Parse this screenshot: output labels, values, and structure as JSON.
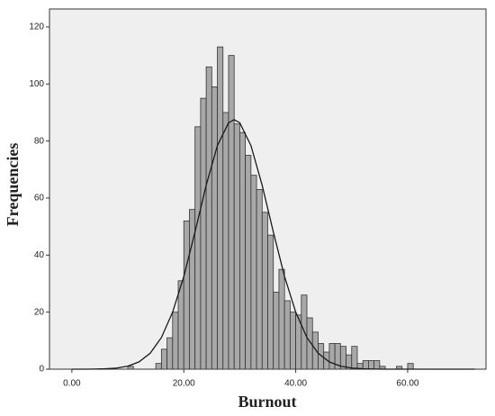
{
  "chart_data": {
    "type": "histogram",
    "xlabel": "Burnout",
    "ylabel": "Frequencies",
    "bins": [
      10,
      11,
      12,
      13,
      14,
      15,
      16,
      17,
      18,
      19,
      20,
      21,
      22,
      23,
      24,
      25,
      26,
      27,
      28,
      29,
      30,
      31,
      32,
      33,
      34,
      35,
      36,
      37,
      38,
      39,
      40,
      41,
      42,
      43,
      44,
      45,
      46,
      47,
      48,
      49,
      50,
      51,
      52,
      53,
      54,
      55,
      56,
      57,
      58,
      59,
      60,
      61
    ],
    "counts": [
      1,
      0,
      0,
      0,
      0,
      2,
      7,
      11,
      20,
      31,
      52,
      56,
      85,
      95,
      106,
      99,
      113,
      90,
      110,
      86,
      83,
      75,
      68,
      63,
      55,
      47,
      27,
      35,
      24,
      20,
      19,
      26,
      18,
      13,
      9,
      6,
      9,
      9,
      8,
      5,
      8,
      2,
      3,
      3,
      3,
      1,
      0,
      0,
      1,
      0,
      2
    ],
    "color": "#a8a8a8",
    "curve": {
      "x": [
        0,
        2,
        4,
        6,
        8,
        10,
        12,
        14,
        16,
        18,
        20,
        22,
        24,
        26,
        28,
        29,
        30,
        32,
        34,
        36,
        38,
        40,
        42,
        44,
        46,
        48,
        50,
        52,
        54,
        56,
        58,
        60,
        62,
        64,
        66,
        68,
        70,
        72
      ],
      "y": [
        0,
        0.01,
        0.04,
        0.14,
        0.4,
        1.07,
        2.56,
        5.61,
        11.1,
        20,
        32.5,
        48.1,
        64.5,
        78.4,
        86.4,
        87.5,
        86.4,
        78.4,
        64.5,
        48.1,
        32.5,
        20,
        11.1,
        5.61,
        2.56,
        1.07,
        0.4,
        0.14,
        0.04,
        0.01,
        0,
        0,
        0,
        0,
        0,
        0,
        0,
        0
      ],
      "color": "#1a1a1a"
    },
    "xlim": [
      -4,
      74
    ],
    "ylim": [
      0,
      126.3
    ],
    "xticks": [
      {
        "value": 0,
        "label": "0.00"
      },
      {
        "value": 20,
        "label": "20.00"
      },
      {
        "value": 40,
        "label": "40.00"
      },
      {
        "value": 60,
        "label": "60.00"
      }
    ],
    "yticks": [
      0,
      20,
      40,
      60,
      80,
      100,
      120
    ],
    "background": "#efefef"
  }
}
